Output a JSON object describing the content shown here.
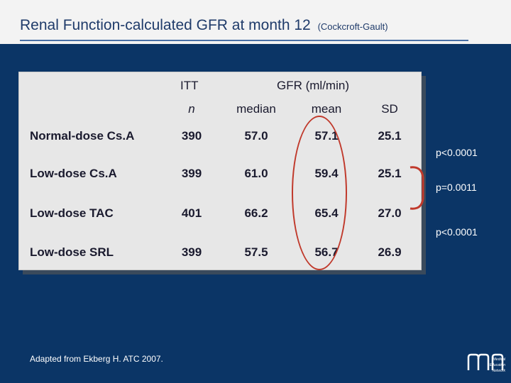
{
  "title": {
    "main": "Renal Function-calculated GFR at month 12",
    "sub": "(Cockcroft-Gault)"
  },
  "table": {
    "header_itt": "ITT",
    "header_gfr": "GFR (ml/min)",
    "col_n": "n",
    "col_median": "median",
    "col_mean": "mean",
    "col_sd": "SD",
    "rows": [
      {
        "label": "Normal-dose Cs.A",
        "n": "390",
        "median": "57.0",
        "mean": "57.1",
        "sd": "25.1"
      },
      {
        "label": "Low-dose Cs.A",
        "n": "399",
        "median": "61.0",
        "mean": "59.4",
        "sd": "25.1"
      },
      {
        "label": "Low-dose TAC",
        "n": "401",
        "median": "66.2",
        "mean": "65.4",
        "sd": "27.0"
      },
      {
        "label": "Low-dose SRL",
        "n": "399",
        "median": "57.5",
        "mean": "56.7",
        "sd": "26.9"
      }
    ]
  },
  "pvalues": {
    "p1": "p<0.0001",
    "p2": "p=0.0011",
    "p3": "p<0.0001"
  },
  "footer": "Adapted from Ekberg H. ATC 2007.",
  "logo": {
    "line1": "Medical",
    "line2": "Education",
    "line3": "Network"
  }
}
